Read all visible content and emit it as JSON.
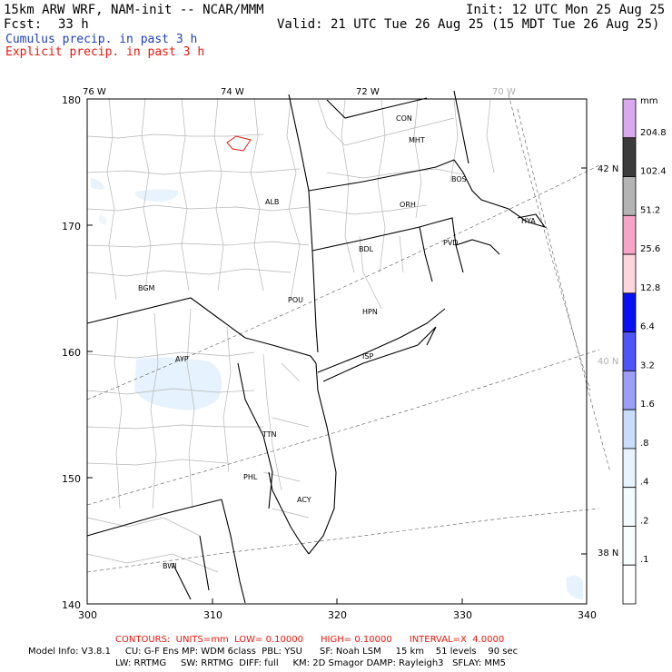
{
  "header": {
    "model": "15km ARW WRF, NAM-init -- NCAR/MMM",
    "init": "Init: 12 UTC Mon 25 Aug 25",
    "fcst_label": "Fcst:",
    "fcst_value": "33 h",
    "valid": "Valid: 21 UTC Tue 26 Aug 25 (15 MDT Tue 26 Aug 25)"
  },
  "legend": {
    "cumulus": "Cumulus precip. in past 3 h",
    "explicit": "Explicit precip. in past 3 h"
  },
  "map": {
    "lon_labels": [
      "76 W",
      "74 W",
      "72 W",
      "70 W"
    ],
    "lat_labels": [
      "42 N",
      "40 N",
      "38 N"
    ],
    "y_ticks": [
      "180",
      "170",
      "160",
      "150",
      "140"
    ],
    "x_ticks": [
      "300",
      "310",
      "320",
      "330",
      "340"
    ],
    "stations": [
      "CON",
      "MHT",
      "BOS",
      "ALB",
      "ORH",
      "HYA",
      "PVD",
      "BDL",
      "BGM",
      "POU",
      "HPN",
      "AYP",
      "ISP",
      "TTN",
      "PHL",
      "ACY",
      "BWI"
    ]
  },
  "colorbar": {
    "unit": "mm",
    "levels": [
      "204.8",
      "102.4",
      "51.2",
      "25.6",
      "12.8",
      "6.4",
      "3.2",
      "1.6",
      ".8",
      ".4",
      ".2",
      ".1"
    ],
    "colors": [
      "#d9a9f0",
      "#3c3c3c",
      "#b4b4b4",
      "#f7a5c6",
      "#fcd6dc",
      "#0a10f5",
      "#4e54f7",
      "#9b9ff9",
      "#c8dcfb",
      "#e8f4fd",
      "#f2fbfd",
      "#f8fdfd",
      "#ffffff"
    ]
  },
  "footer": {
    "contours": "CONTOURS:  UNITS=mm  LOW= 0.10000      HIGH= 0.10000      INTERVAL=X  4.0000",
    "model_info": "Model Info: V3.8.1     CU: G-F Ens MP: WDM 6class  PBL: YSU      SF: Noah LSM     15 km    51 levels    90 sec",
    "model_info2": "LW: RRTMG     SW: RRTMG  DIFF: full     KM: 2D Smagor DAMP: Rayleigh3   SFLAY: MM5"
  }
}
